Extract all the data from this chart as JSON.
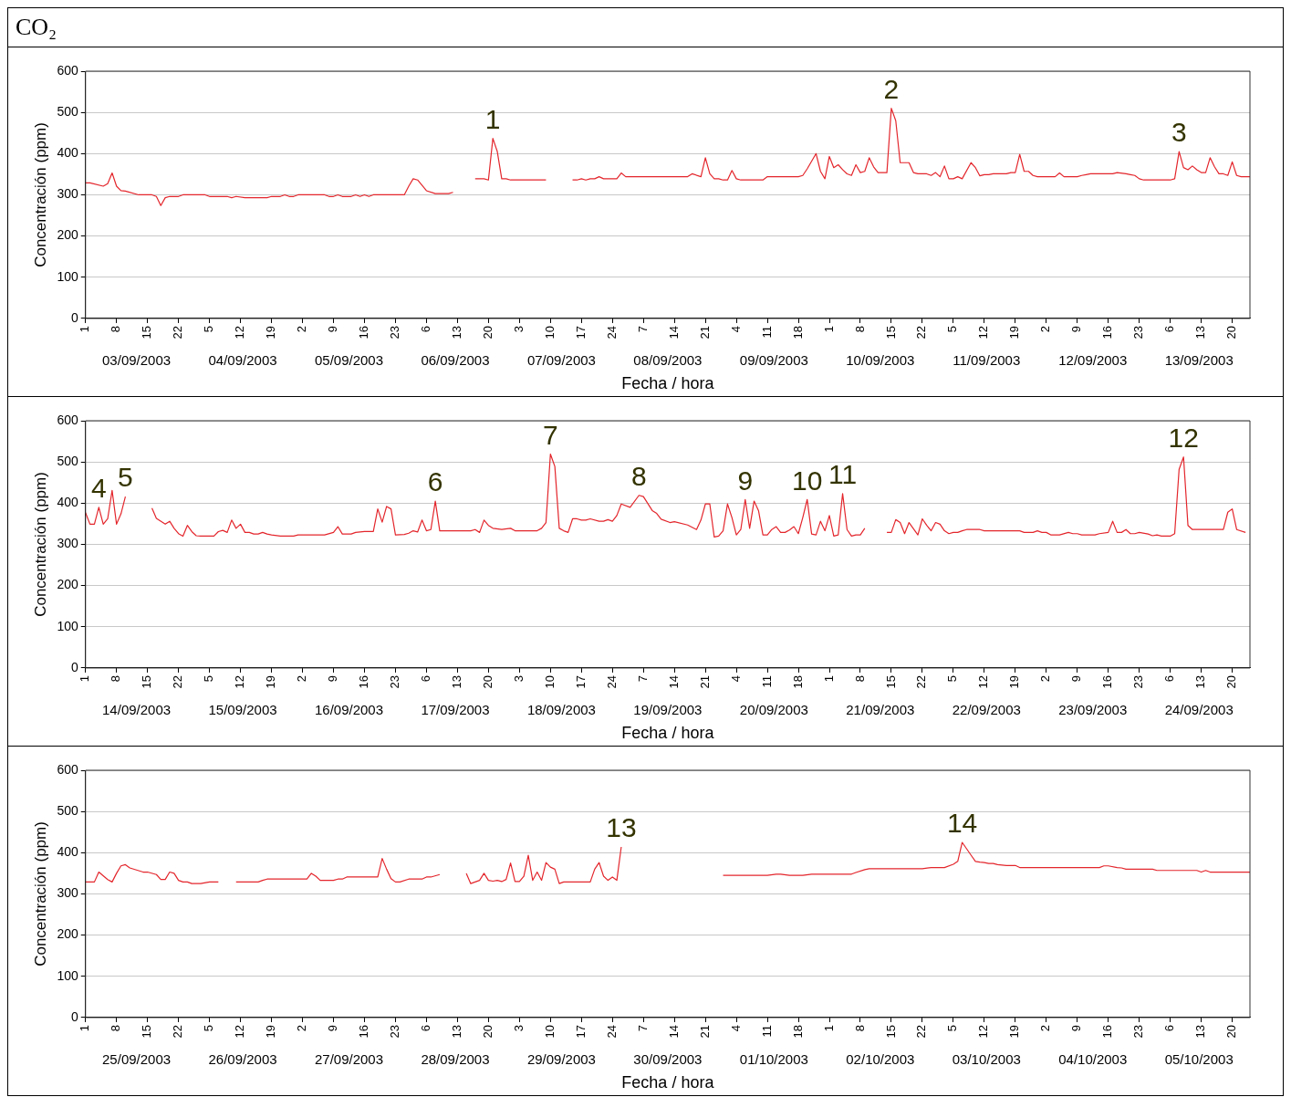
{
  "chart_data": [
    {
      "type": "line",
      "title": "CO₂",
      "xlabel": "Fecha / hora",
      "ylabel": "Concentración (ppm)",
      "grid": "y",
      "marker": "none",
      "xlim": [
        "2003-09-03T01:00",
        "2003-09-14T00:00"
      ],
      "ylim": [
        0,
        600
      ],
      "yticks": [
        0,
        100,
        200,
        300,
        400,
        500,
        600
      ],
      "xticks": [
        {
          "value": "2003-09-03T01:00",
          "label": "1"
        },
        {
          "value": "2003-09-03T08:00",
          "label": "8"
        },
        {
          "value": "2003-09-03T15:00",
          "label": "15"
        },
        {
          "value": "2003-09-03T22:00",
          "label": "22"
        },
        {
          "value": "2003-09-04T05:00",
          "label": "5"
        },
        {
          "value": "2003-09-04T12:00",
          "label": "12"
        },
        {
          "value": "2003-09-04T19:00",
          "label": "19"
        },
        {
          "value": "2003-09-05T02:00",
          "label": "2"
        },
        {
          "value": "2003-09-05T09:00",
          "label": "9"
        },
        {
          "value": "2003-09-05T16:00",
          "label": "16"
        },
        {
          "value": "2003-09-05T23:00",
          "label": "23"
        },
        {
          "value": "2003-09-06T06:00",
          "label": "6"
        },
        {
          "value": "2003-09-06T13:00",
          "label": "13"
        },
        {
          "value": "2003-09-06T20:00",
          "label": "20"
        },
        {
          "value": "2003-09-07T03:00",
          "label": "3"
        },
        {
          "value": "2003-09-07T10:00",
          "label": "10"
        },
        {
          "value": "2003-09-07T17:00",
          "label": "17"
        },
        {
          "value": "2003-09-08T00:00",
          "label": "24"
        },
        {
          "value": "2003-09-08T07:00",
          "label": "7"
        },
        {
          "value": "2003-09-08T14:00",
          "label": "14"
        },
        {
          "value": "2003-09-08T21:00",
          "label": "21"
        },
        {
          "value": "2003-09-09T04:00",
          "label": "4"
        },
        {
          "value": "2003-09-09T11:00",
          "label": "11"
        },
        {
          "value": "2003-09-09T18:00",
          "label": "18"
        },
        {
          "value": "2003-09-10T01:00",
          "label": "1"
        },
        {
          "value": "2003-09-10T08:00",
          "label": "8"
        },
        {
          "value": "2003-09-10T15:00",
          "label": "15"
        },
        {
          "value": "2003-09-10T22:00",
          "label": "22"
        },
        {
          "value": "2003-09-11T05:00",
          "label": "5"
        },
        {
          "value": "2003-09-11T12:00",
          "label": "12"
        },
        {
          "value": "2003-09-11T19:00",
          "label": "19"
        },
        {
          "value": "2003-09-12T02:00",
          "label": "2"
        },
        {
          "value": "2003-09-12T09:00",
          "label": "9"
        },
        {
          "value": "2003-09-12T16:00",
          "label": "16"
        },
        {
          "value": "2003-09-12T23:00",
          "label": "23"
        },
        {
          "value": "2003-09-13T06:00",
          "label": "6"
        },
        {
          "value": "2003-09-13T13:00",
          "label": "13"
        },
        {
          "value": "2003-09-13T20:00",
          "label": "20"
        }
      ],
      "x2lim": [
        "2003-09-03T01:00",
        "2003-09-14T00:00"
      ],
      "x2ticks": [
        {
          "value": "2003-09-03T12:30",
          "label": "03/09/2003"
        },
        {
          "value": "2003-09-04T12:30",
          "label": "04/09/2003"
        },
        {
          "value": "2003-09-05T12:30",
          "label": "05/09/2003"
        },
        {
          "value": "2003-09-06T12:30",
          "label": "06/09/2003"
        },
        {
          "value": "2003-09-07T12:30",
          "label": "07/09/2003"
        },
        {
          "value": "2003-09-08T12:30",
          "label": "08/09/2003"
        },
        {
          "value": "2003-09-09T12:30",
          "label": "09/09/2003"
        },
        {
          "value": "2003-09-10T12:30",
          "label": "10/09/2003"
        },
        {
          "value": "2003-09-11T12:30",
          "label": "11/09/2003"
        },
        {
          "value": "2003-09-12T12:30",
          "label": "12/09/2003"
        },
        {
          "value": "2003-09-13T12:30",
          "label": "13/09/2003"
        }
      ],
      "annotations": [
        {
          "text": "1",
          "x": "2003-09-06T21:00",
          "y": 437
        },
        {
          "text": "2",
          "x": "2003-09-10T15:00",
          "y": 510
        },
        {
          "text": "3",
          "x": "2003-09-13T08:00",
          "y": 405
        }
      ],
      "series": [
        {
          "color": "#e3262c",
          "x": [
            "2003-09-03T01:00",
            "2003-09-03T02:00",
            "2003-09-03T05:00",
            "2003-09-03T06:00",
            "2003-09-03T07:00",
            "2003-09-03T08:00",
            "2003-09-03T09:00",
            "2003-09-03T10:00",
            "2003-09-03T13:00",
            "2003-09-03T16:00",
            "2003-09-03T17:00",
            "2003-09-03T18:00",
            "2003-09-03T19:00",
            "2003-09-03T20:00",
            "2003-09-03T22:00",
            "2003-09-03T23:00",
            "2003-09-04T04:00",
            "2003-09-04T05:00",
            "2003-09-04T09:00",
            "2003-09-04T10:00",
            "2003-09-04T11:00",
            "2003-09-04T13:00",
            "2003-09-04T18:00",
            "2003-09-04T19:00",
            "2003-09-04T21:00",
            "2003-09-04T22:00",
            "2003-09-04T23:00",
            "2003-09-05T00:00",
            "2003-09-05T01:00",
            "2003-09-05T07:00",
            "2003-09-05T08:00",
            "2003-09-05T09:00",
            "2003-09-05T10:00",
            "2003-09-05T11:00",
            "2003-09-05T13:00",
            "2003-09-05T14:00",
            "2003-09-05T15:00",
            "2003-09-05T16:00",
            "2003-09-05T17:00",
            "2003-09-05T18:00",
            "2003-09-06T01:00",
            "2003-09-06T02:00",
            "2003-09-06T03:00",
            "2003-09-06T04:00",
            "2003-09-06T06:00",
            "2003-09-06T08:00",
            "2003-09-06T11:00",
            "2003-09-06T12:00",
            "2003-09-06T14:00",
            "2003-09-06T17:00",
            "2003-09-06T19:00",
            "2003-09-06T20:00",
            "2003-09-06T21:00",
            "2003-09-06T22:00",
            "2003-09-06T23:00",
            "2003-09-07T00:00",
            "2003-09-07T01:00",
            "2003-09-07T09:00",
            "2003-09-07T12:00",
            "2003-09-07T15:00",
            "2003-09-07T16:00",
            "2003-09-07T17:00",
            "2003-09-07T18:00",
            "2003-09-07T19:00",
            "2003-09-07T20:00",
            "2003-09-07T21:00",
            "2003-09-07T22:00",
            "2003-09-08T01:00",
            "2003-09-08T02:00",
            "2003-09-08T03:00",
            "2003-09-08T14:00",
            "2003-09-08T17:00",
            "2003-09-08T18:00",
            "2003-09-08T20:00",
            "2003-09-08T21:00",
            "2003-09-08T22:00",
            "2003-09-08T23:00",
            "2003-09-09T00:00",
            "2003-09-09T01:00",
            "2003-09-09T02:00",
            "2003-09-09T03:00",
            "2003-09-09T04:00",
            "2003-09-09T05:00",
            "2003-09-09T10:00",
            "2003-09-09T11:00",
            "2003-09-09T18:00",
            "2003-09-09T19:00",
            "2003-09-09T20:00",
            "2003-09-09T22:00",
            "2003-09-09T23:00",
            "2003-09-10T00:00",
            "2003-09-10T01:00",
            "2003-09-10T02:00",
            "2003-09-10T03:00",
            "2003-09-10T04:00",
            "2003-09-10T05:00",
            "2003-09-10T06:00",
            "2003-09-10T07:00",
            "2003-09-10T08:00",
            "2003-09-10T09:00",
            "2003-09-10T10:00",
            "2003-09-10T11:00",
            "2003-09-10T12:00",
            "2003-09-10T14:00",
            "2003-09-10T15:00",
            "2003-09-10T16:00",
            "2003-09-10T17:00",
            "2003-09-10T19:00",
            "2003-09-10T20:00",
            "2003-09-10T21:00",
            "2003-09-10T23:00",
            "2003-09-11T00:00",
            "2003-09-11T01:00",
            "2003-09-11T02:00",
            "2003-09-11T03:00",
            "2003-09-11T04:00",
            "2003-09-11T05:00",
            "2003-09-11T06:00",
            "2003-09-11T07:00",
            "2003-09-11T09:00",
            "2003-09-11T10:00",
            "2003-09-11T11:00",
            "2003-09-11T12:00",
            "2003-09-11T13:00",
            "2003-09-11T14:00",
            "2003-09-11T17:00",
            "2003-09-11T18:00",
            "2003-09-11T19:00",
            "2003-09-11T20:00",
            "2003-09-11T21:00",
            "2003-09-11T22:00",
            "2003-09-11T23:00",
            "2003-09-12T00:00",
            "2003-09-12T04:00",
            "2003-09-12T05:00",
            "2003-09-12T06:00",
            "2003-09-12T09:00",
            "2003-09-12T10:00",
            "2003-09-12T11:00",
            "2003-09-12T12:00",
            "2003-09-12T17:00",
            "2003-09-12T18:00",
            "2003-09-12T20:00",
            "2003-09-12T21:00",
            "2003-09-12T22:00",
            "2003-09-12T23:00",
            "2003-09-13T00:00",
            "2003-09-13T06:00",
            "2003-09-13T07:00",
            "2003-09-13T08:00",
            "2003-09-13T09:00",
            "2003-09-13T10:00",
            "2003-09-13T11:00",
            "2003-09-13T12:00",
            "2003-09-13T13:00",
            "2003-09-13T14:00",
            "2003-09-13T15:00",
            "2003-09-13T16:00",
            "2003-09-13T17:00",
            "2003-09-13T18:00",
            "2003-09-13T19:00",
            "2003-09-13T20:00",
            "2003-09-13T21:00",
            "2003-09-13T22:00",
            "2003-09-14T00:00"
          ],
          "values": [
            329,
            329,
            321,
            327,
            353,
            321,
            310,
            309,
            300,
            300,
            296,
            274,
            293,
            296,
            296,
            300,
            300,
            296,
            296,
            293,
            296,
            293,
            293,
            296,
            296,
            300,
            296,
            296,
            300,
            300,
            296,
            296,
            300,
            296,
            296,
            300,
            296,
            300,
            296,
            300,
            300,
            321,
            339,
            336,
            310,
            303,
            303,
            306,
            null,
            339,
            339,
            336,
            437,
            405,
            339,
            339,
            336,
            336,
            null,
            336,
            336,
            339,
            336,
            339,
            339,
            344,
            339,
            339,
            353,
            344,
            344,
            344,
            351,
            344,
            390,
            351,
            339,
            339,
            336,
            336,
            359,
            339,
            336,
            336,
            344,
            344,
            347,
            363,
            400,
            357,
            339,
            393,
            366,
            373,
            361,
            351,
            347,
            373,
            354,
            357,
            390,
            368,
            354,
            354,
            510,
            480,
            378,
            378,
            354,
            351,
            351,
            347,
            354,
            344,
            370,
            339,
            339,
            344,
            339,
            378,
            366,
            346,
            349,
            349,
            351,
            351,
            354,
            354,
            398,
            357,
            357,
            347,
            344,
            344,
            353,
            344,
            344,
            347,
            349,
            351,
            351,
            354,
            351,
            349,
            347,
            339,
            336,
            336,
            339,
            405,
            366,
            361,
            370,
            361,
            354,
            354,
            390,
            368,
            351,
            351,
            347,
            380,
            347,
            344,
            344
          ]
        }
      ]
    },
    {
      "type": "line",
      "xlabel": "Fecha / hora",
      "ylabel": "Concentración (ppm)",
      "grid": "y",
      "marker": "none",
      "xlim": [
        "2003-09-14T01:00",
        "2003-09-25T00:00"
      ],
      "ylim": [
        0,
        600
      ],
      "yticks": [
        0,
        100,
        200,
        300,
        400,
        500,
        600
      ],
      "xticks": [
        {
          "value": "2003-09-14T01:00",
          "label": "1"
        },
        {
          "value": "2003-09-14T08:00",
          "label": "8"
        },
        {
          "value": "2003-09-14T15:00",
          "label": "15"
        },
        {
          "value": "2003-09-14T22:00",
          "label": "22"
        },
        {
          "value": "2003-09-15T05:00",
          "label": "5"
        },
        {
          "value": "2003-09-15T12:00",
          "label": "12"
        },
        {
          "value": "2003-09-15T19:00",
          "label": "19"
        },
        {
          "value": "2003-09-16T02:00",
          "label": "2"
        },
        {
          "value": "2003-09-16T09:00",
          "label": "9"
        },
        {
          "value": "2003-09-16T16:00",
          "label": "16"
        },
        {
          "value": "2003-09-16T23:00",
          "label": "23"
        },
        {
          "value": "2003-09-17T06:00",
          "label": "6"
        },
        {
          "value": "2003-09-17T13:00",
          "label": "13"
        },
        {
          "value": "2003-09-17T20:00",
          "label": "20"
        },
        {
          "value": "2003-09-18T03:00",
          "label": "3"
        },
        {
          "value": "2003-09-18T10:00",
          "label": "10"
        },
        {
          "value": "2003-09-18T17:00",
          "label": "17"
        },
        {
          "value": "2003-09-19T00:00",
          "label": "24"
        },
        {
          "value": "2003-09-19T07:00",
          "label": "7"
        },
        {
          "value": "2003-09-19T14:00",
          "label": "14"
        },
        {
          "value": "2003-09-19T21:00",
          "label": "21"
        },
        {
          "value": "2003-09-20T04:00",
          "label": "4"
        },
        {
          "value": "2003-09-20T11:00",
          "label": "11"
        },
        {
          "value": "2003-09-20T18:00",
          "label": "18"
        },
        {
          "value": "2003-09-21T01:00",
          "label": "1"
        },
        {
          "value": "2003-09-21T08:00",
          "label": "8"
        },
        {
          "value": "2003-09-21T15:00",
          "label": "15"
        },
        {
          "value": "2003-09-21T22:00",
          "label": "22"
        },
        {
          "value": "2003-09-22T05:00",
          "label": "5"
        },
        {
          "value": "2003-09-22T12:00",
          "label": "12"
        },
        {
          "value": "2003-09-22T19:00",
          "label": "19"
        },
        {
          "value": "2003-09-23T02:00",
          "label": "2"
        },
        {
          "value": "2003-09-23T09:00",
          "label": "9"
        },
        {
          "value": "2003-09-23T16:00",
          "label": "16"
        },
        {
          "value": "2003-09-23T23:00",
          "label": "23"
        },
        {
          "value": "2003-09-24T06:00",
          "label": "6"
        },
        {
          "value": "2003-09-24T13:00",
          "label": "13"
        },
        {
          "value": "2003-09-24T20:00",
          "label": "20"
        }
      ],
      "x2lim": [
        "2003-09-14T01:00",
        "2003-09-25T00:00"
      ],
      "x2ticks": [
        {
          "value": "2003-09-14T12:30",
          "label": "14/09/2003"
        },
        {
          "value": "2003-09-15T12:30",
          "label": "15/09/2003"
        },
        {
          "value": "2003-09-16T12:30",
          "label": "16/09/2003"
        },
        {
          "value": "2003-09-17T12:30",
          "label": "17/09/2003"
        },
        {
          "value": "2003-09-18T12:30",
          "label": "18/09/2003"
        },
        {
          "value": "2003-09-19T12:30",
          "label": "19/09/2003"
        },
        {
          "value": "2003-09-20T12:30",
          "label": "20/09/2003"
        },
        {
          "value": "2003-09-21T12:30",
          "label": "21/09/2003"
        },
        {
          "value": "2003-09-22T12:30",
          "label": "22/09/2003"
        },
        {
          "value": "2003-09-23T12:30",
          "label": "23/09/2003"
        },
        {
          "value": "2003-09-24T12:30",
          "label": "24/09/2003"
        }
      ],
      "annotations": [
        {
          "text": "4",
          "x": "2003-09-14T04:00",
          "y": 390
        },
        {
          "text": "5",
          "x": "2003-09-14T10:00",
          "y": 416
        },
        {
          "text": "6",
          "x": "2003-09-17T08:00",
          "y": 405
        },
        {
          "text": "7",
          "x": "2003-09-18T10:00",
          "y": 519
        },
        {
          "text": "8",
          "x": "2003-09-19T06:00",
          "y": 419
        },
        {
          "text": "9",
          "x": "2003-09-20T06:00",
          "y": 409
        },
        {
          "text": "10",
          "x": "2003-09-20T20:00",
          "y": 409
        },
        {
          "text": "11",
          "x": "2003-09-21T04:00",
          "y": 423
        },
        {
          "text": "12",
          "x": "2003-09-24T09:00",
          "y": 512
        }
      ],
      "series": [
        {
          "color": "#e3262c",
          "x": [
            "2003-09-14T01:00",
            "2003-09-14T02:00",
            "2003-09-14T03:00",
            "2003-09-14T04:00",
            "2003-09-14T05:00",
            "2003-09-14T06:00",
            "2003-09-14T07:00",
            "2003-09-14T08:00",
            "2003-09-14T09:00",
            "2003-09-14T10:00",
            "2003-09-14T13:00",
            "2003-09-14T16:00",
            "2003-09-14T17:00",
            "2003-09-14T19:00",
            "2003-09-14T20:00",
            "2003-09-14T21:00",
            "2003-09-14T22:00",
            "2003-09-14T23:00",
            "2003-09-15T00:00",
            "2003-09-15T01:00",
            "2003-09-15T02:00",
            "2003-09-15T03:00",
            "2003-09-15T06:00",
            "2003-09-15T07:00",
            "2003-09-15T08:00",
            "2003-09-15T09:00",
            "2003-09-15T10:00",
            "2003-09-15T11:00",
            "2003-09-15T12:00",
            "2003-09-15T13:00",
            "2003-09-15T14:00",
            "2003-09-15T15:00",
            "2003-09-15T16:00",
            "2003-09-15T17:00",
            "2003-09-15T18:00",
            "2003-09-15T19:00",
            "2003-09-15T21:00",
            "2003-09-16T00:00",
            "2003-09-16T01:00",
            "2003-09-16T07:00",
            "2003-09-16T09:00",
            "2003-09-16T10:00",
            "2003-09-16T11:00",
            "2003-09-16T13:00",
            "2003-09-16T14:00",
            "2003-09-16T16:00",
            "2003-09-16T18:00",
            "2003-09-16T19:00",
            "2003-09-16T20:00",
            "2003-09-16T21:00",
            "2003-09-16T22:00",
            "2003-09-16T23:00",
            "2003-09-17T01:00",
            "2003-09-17T02:00",
            "2003-09-17T03:00",
            "2003-09-17T04:00",
            "2003-09-17T05:00",
            "2003-09-17T06:00",
            "2003-09-17T07:00",
            "2003-09-17T08:00",
            "2003-09-17T09:00",
            "2003-09-17T16:00",
            "2003-09-17T17:00",
            "2003-09-17T18:00",
            "2003-09-17T19:00",
            "2003-09-17T20:00",
            "2003-09-17T21:00",
            "2003-09-17T23:00",
            "2003-09-18T01:00",
            "2003-09-18T02:00",
            "2003-09-18T07:00",
            "2003-09-18T08:00",
            "2003-09-18T09:00",
            "2003-09-18T10:00",
            "2003-09-18T11:00",
            "2003-09-18T12:00",
            "2003-09-18T13:00",
            "2003-09-18T14:00",
            "2003-09-18T15:00",
            "2003-09-18T16:00",
            "2003-09-18T17:00",
            "2003-09-18T18:00",
            "2003-09-18T19:00",
            "2003-09-18T21:00",
            "2003-09-18T22:00",
            "2003-09-18T23:00",
            "2003-09-19T00:00",
            "2003-09-19T01:00",
            "2003-09-19T02:00",
            "2003-09-19T04:00",
            "2003-09-19T06:00",
            "2003-09-19T07:00",
            "2003-09-19T09:00",
            "2003-09-19T10:00",
            "2003-09-19T11:00",
            "2003-09-19T13:00",
            "2003-09-19T14:00",
            "2003-09-19T17:00",
            "2003-09-19T19:00",
            "2003-09-19T20:00",
            "2003-09-19T21:00",
            "2003-09-19T22:00",
            "2003-09-19T23:00",
            "2003-09-20T00:00",
            "2003-09-20T01:00",
            "2003-09-20T02:00",
            "2003-09-20T03:00",
            "2003-09-20T04:00",
            "2003-09-20T05:00",
            "2003-09-20T06:00",
            "2003-09-20T07:00",
            "2003-09-20T08:00",
            "2003-09-20T09:00",
            "2003-09-20T10:00",
            "2003-09-20T11:00",
            "2003-09-20T12:00",
            "2003-09-20T13:00",
            "2003-09-20T14:00",
            "2003-09-20T15:00",
            "2003-09-20T16:00",
            "2003-09-20T17:00",
            "2003-09-20T18:00",
            "2003-09-20T19:00",
            "2003-09-20T20:00",
            "2003-09-20T21:00",
            "2003-09-20T22:00",
            "2003-09-20T23:00",
            "2003-09-21T00:00",
            "2003-09-21T01:00",
            "2003-09-21T02:00",
            "2003-09-21T03:00",
            "2003-09-21T04:00",
            "2003-09-21T05:00",
            "2003-09-21T06:00",
            "2003-09-21T07:00",
            "2003-09-21T08:00",
            "2003-09-21T09:00",
            "2003-09-21T12:00",
            "2003-09-21T14:00",
            "2003-09-21T15:00",
            "2003-09-21T16:00",
            "2003-09-21T17:00",
            "2003-09-21T18:00",
            "2003-09-21T19:00",
            "2003-09-21T21:00",
            "2003-09-21T22:00",
            "2003-09-21T23:00",
            "2003-09-22T00:00",
            "2003-09-22T01:00",
            "2003-09-22T02:00",
            "2003-09-22T03:00",
            "2003-09-22T04:00",
            "2003-09-22T05:00",
            "2003-09-22T06:00",
            "2003-09-22T07:00",
            "2003-09-22T08:00",
            "2003-09-22T11:00",
            "2003-09-22T12:00",
            "2003-09-22T20:00",
            "2003-09-22T21:00",
            "2003-09-22T23:00",
            "2003-09-23T00:00",
            "2003-09-23T01:00",
            "2003-09-23T02:00",
            "2003-09-23T03:00",
            "2003-09-23T05:00",
            "2003-09-23T07:00",
            "2003-09-23T08:00",
            "2003-09-23T09:00",
            "2003-09-23T10:00",
            "2003-09-23T13:00",
            "2003-09-23T14:00",
            "2003-09-23T16:00",
            "2003-09-23T17:00",
            "2003-09-23T18:00",
            "2003-09-23T19:00",
            "2003-09-23T20:00",
            "2003-09-23T21:00",
            "2003-09-23T22:00",
            "2003-09-23T23:00",
            "2003-09-24T01:00",
            "2003-09-24T02:00",
            "2003-09-24T03:00",
            "2003-09-24T04:00",
            "2003-09-24T06:00",
            "2003-09-24T07:00",
            "2003-09-24T08:00",
            "2003-09-24T09:00",
            "2003-09-24T10:00",
            "2003-09-24T11:00",
            "2003-09-24T18:00",
            "2003-09-24T19:00",
            "2003-09-24T20:00",
            "2003-09-24T21:00",
            "2003-09-24T23:00"
          ],
          "values": [
            377,
            349,
            349,
            390,
            349,
            362,
            431,
            349,
            374,
            416,
            null,
            388,
            363,
            349,
            356,
            339,
            326,
            320,
            346,
            331,
            321,
            320,
            320,
            331,
            334,
            329,
            359,
            339,
            349,
            329,
            329,
            325,
            325,
            329,
            325,
            323,
            320,
            320,
            323,
            323,
            329,
            343,
            325,
            325,
            329,
            331,
            331,
            386,
            354,
            392,
            386,
            323,
            324,
            327,
            333,
            330,
            359,
            333,
            336,
            405,
            333,
            333,
            336,
            329,
            359,
            346,
            339,
            336,
            339,
            333,
            333,
            339,
            353,
            519,
            489,
            339,
            333,
            329,
            362,
            362,
            359,
            359,
            362,
            356,
            356,
            360,
            356,
            370,
            398,
            390,
            419,
            416,
            382,
            375,
            361,
            353,
            355,
            347,
            336,
            359,
            398,
            398,
            318,
            320,
            333,
            398,
            365,
            323,
            336,
            409,
            339,
            405,
            382,
            323,
            323,
            336,
            343,
            329,
            329,
            335,
            343,
            326,
            365,
            409,
            325,
            323,
            356,
            333,
            370,
            320,
            323,
            423,
            336,
            320,
            323,
            323,
            339,
            null,
            329,
            329,
            360,
            353,
            326,
            353,
            323,
            362,
            346,
            333,
            353,
            349,
            333,
            326,
            329,
            329,
            333,
            336,
            336,
            333,
            333,
            329,
            329,
            333,
            329,
            329,
            323,
            323,
            329,
            326,
            326,
            323,
            323,
            326,
            329,
            356,
            329,
            329,
            336,
            326,
            326,
            329,
            325,
            321,
            323,
            320,
            320,
            326,
            482,
            512,
            346,
            336,
            336,
            378,
            386,
            336,
            329
          ]
        }
      ]
    },
    {
      "type": "line",
      "xlabel": "Fecha / hora",
      "ylabel": "Concentración (ppm)",
      "grid": "y",
      "marker": "none",
      "xlim": [
        "2003-09-25T01:00",
        "2003-10-06T00:00"
      ],
      "ylim": [
        0,
        600
      ],
      "yticks": [
        0,
        100,
        200,
        300,
        400,
        500,
        600
      ],
      "xticks": [
        {
          "value": "2003-09-25T01:00",
          "label": "1"
        },
        {
          "value": "2003-09-25T08:00",
          "label": "8"
        },
        {
          "value": "2003-09-25T15:00",
          "label": "15"
        },
        {
          "value": "2003-09-25T22:00",
          "label": "22"
        },
        {
          "value": "2003-09-26T05:00",
          "label": "5"
        },
        {
          "value": "2003-09-26T12:00",
          "label": "12"
        },
        {
          "value": "2003-09-26T19:00",
          "label": "19"
        },
        {
          "value": "2003-09-27T02:00",
          "label": "2"
        },
        {
          "value": "2003-09-27T09:00",
          "label": "9"
        },
        {
          "value": "2003-09-27T16:00",
          "label": "16"
        },
        {
          "value": "2003-09-27T23:00",
          "label": "23"
        },
        {
          "value": "2003-09-28T06:00",
          "label": "6"
        },
        {
          "value": "2003-09-28T13:00",
          "label": "13"
        },
        {
          "value": "2003-09-28T20:00",
          "label": "20"
        },
        {
          "value": "2003-09-29T03:00",
          "label": "3"
        },
        {
          "value": "2003-09-29T10:00",
          "label": "10"
        },
        {
          "value": "2003-09-29T17:00",
          "label": "17"
        },
        {
          "value": "2003-09-30T00:00",
          "label": "24"
        },
        {
          "value": "2003-09-30T07:00",
          "label": "7"
        },
        {
          "value": "2003-09-30T14:00",
          "label": "14"
        },
        {
          "value": "2003-09-30T21:00",
          "label": "21"
        },
        {
          "value": "2003-10-01T04:00",
          "label": "4"
        },
        {
          "value": "2003-10-01T11:00",
          "label": "11"
        },
        {
          "value": "2003-10-01T18:00",
          "label": "18"
        },
        {
          "value": "2003-10-02T01:00",
          "label": "1"
        },
        {
          "value": "2003-10-02T08:00",
          "label": "8"
        },
        {
          "value": "2003-10-02T15:00",
          "label": "15"
        },
        {
          "value": "2003-10-02T22:00",
          "label": "22"
        },
        {
          "value": "2003-10-03T05:00",
          "label": "5"
        },
        {
          "value": "2003-10-03T12:00",
          "label": "12"
        },
        {
          "value": "2003-10-03T19:00",
          "label": "19"
        },
        {
          "value": "2003-10-04T02:00",
          "label": "2"
        },
        {
          "value": "2003-10-04T09:00",
          "label": "9"
        },
        {
          "value": "2003-10-04T16:00",
          "label": "16"
        },
        {
          "value": "2003-10-04T23:00",
          "label": "23"
        },
        {
          "value": "2003-10-05T06:00",
          "label": "6"
        },
        {
          "value": "2003-10-05T13:00",
          "label": "13"
        },
        {
          "value": "2003-10-05T20:00",
          "label": "20"
        }
      ],
      "x2lim": [
        "2003-09-25T01:00",
        "2003-10-06T00:00"
      ],
      "x2ticks": [
        {
          "value": "2003-09-25T12:30",
          "label": "25/09/2003"
        },
        {
          "value": "2003-09-26T12:30",
          "label": "26/09/2003"
        },
        {
          "value": "2003-09-27T12:30",
          "label": "27/09/2003"
        },
        {
          "value": "2003-09-28T12:30",
          "label": "28/09/2003"
        },
        {
          "value": "2003-09-29T12:30",
          "label": "29/09/2003"
        },
        {
          "value": "2003-09-30T12:30",
          "label": "30/09/2003"
        },
        {
          "value": "2003-10-01T12:30",
          "label": "01/10/2003"
        },
        {
          "value": "2003-10-02T12:30",
          "label": "02/10/2003"
        },
        {
          "value": "2003-10-03T12:30",
          "label": "03/10/2003"
        },
        {
          "value": "2003-10-04T12:30",
          "label": "04/10/2003"
        },
        {
          "value": "2003-10-05T12:30",
          "label": "05/10/2003"
        }
      ],
      "annotations": [
        {
          "text": "13",
          "x": "2003-09-30T02:00",
          "y": 414
        },
        {
          "text": "14",
          "x": "2003-10-03T07:00",
          "y": 425
        }
      ],
      "series": [
        {
          "color": "#e3262c",
          "x": [
            "2003-09-25T01:00",
            "2003-09-25T03:00",
            "2003-09-25T04:00",
            "2003-09-25T06:00",
            "2003-09-25T07:00",
            "2003-09-25T08:00",
            "2003-09-25T09:00",
            "2003-09-25T10:00",
            "2003-09-25T11:00",
            "2003-09-25T14:00",
            "2003-09-25T15:00",
            "2003-09-25T17:00",
            "2003-09-25T18:00",
            "2003-09-25T19:00",
            "2003-09-25T20:00",
            "2003-09-25T21:00",
            "2003-09-25T22:00",
            "2003-09-25T23:00",
            "2003-09-26T00:00",
            "2003-09-26T01:00",
            "2003-09-26T03:00",
            "2003-09-26T05:00",
            "2003-09-26T07:00",
            "2003-09-26T09:00",
            "2003-09-26T11:00",
            "2003-09-26T16:00",
            "2003-09-26T17:00",
            "2003-09-26T18:00",
            "2003-09-27T03:00",
            "2003-09-27T04:00",
            "2003-09-27T05:00",
            "2003-09-27T06:00",
            "2003-09-27T09:00",
            "2003-09-27T10:00",
            "2003-09-27T11:00",
            "2003-09-27T12:00",
            "2003-09-27T19:00",
            "2003-09-27T20:00",
            "2003-09-27T21:00",
            "2003-09-27T22:00",
            "2003-09-27T23:00",
            "2003-09-28T00:00",
            "2003-09-28T02:00",
            "2003-09-28T05:00",
            "2003-09-28T06:00",
            "2003-09-28T07:00",
            "2003-09-28T09:00",
            "2003-09-28T12:00",
            "2003-09-28T15:00",
            "2003-09-28T16:00",
            "2003-09-28T18:00",
            "2003-09-28T19:00",
            "2003-09-28T20:00",
            "2003-09-28T21:00",
            "2003-09-28T22:00",
            "2003-09-28T23:00",
            "2003-09-29T00:00",
            "2003-09-29T01:00",
            "2003-09-29T02:00",
            "2003-09-29T03:00",
            "2003-09-29T04:00",
            "2003-09-29T05:00",
            "2003-09-29T06:00",
            "2003-09-29T07:00",
            "2003-09-29T08:00",
            "2003-09-29T09:00",
            "2003-09-29T10:00",
            "2003-09-29T11:00",
            "2003-09-29T12:00",
            "2003-09-29T13:00",
            "2003-09-29T19:00",
            "2003-09-29T20:00",
            "2003-09-29T21:00",
            "2003-09-29T22:00",
            "2003-09-29T23:00",
            "2003-09-30T00:00",
            "2003-09-30T01:00",
            "2003-09-30T02:00",
            "2003-09-30T10:00",
            "2003-10-01T01:00",
            "2003-10-01T11:00",
            "2003-10-01T13:00",
            "2003-10-01T14:00",
            "2003-10-01T16:00",
            "2003-10-01T19:00",
            "2003-10-01T21:00",
            "2003-10-02T06:00",
            "2003-10-02T07:00",
            "2003-10-02T09:00",
            "2003-10-02T10:00",
            "2003-10-02T22:00",
            "2003-10-03T00:00",
            "2003-10-03T03:00",
            "2003-10-03T05:00",
            "2003-10-03T06:00",
            "2003-10-03T07:00",
            "2003-10-03T09:00",
            "2003-10-03T10:00",
            "2003-10-03T11:00",
            "2003-10-03T12:00",
            "2003-10-03T13:00",
            "2003-10-03T14:00",
            "2003-10-03T15:00",
            "2003-10-03T17:00",
            "2003-10-03T19:00",
            "2003-10-03T20:00",
            "2003-10-04T14:00",
            "2003-10-04T15:00",
            "2003-10-04T16:00",
            "2003-10-04T18:00",
            "2003-10-04T19:00",
            "2003-10-04T20:00",
            "2003-10-05T02:00",
            "2003-10-05T03:00",
            "2003-10-05T12:00",
            "2003-10-05T13:00",
            "2003-10-05T14:00",
            "2003-10-05T15:00",
            "2003-10-05T22:00",
            "2003-10-06T00:00"
          ],
          "values": [
            329,
            329,
            353,
            335,
            329,
            350,
            368,
            371,
            363,
            353,
            353,
            347,
            335,
            335,
            353,
            350,
            333,
            329,
            329,
            325,
            325,
            329,
            329,
            null,
            329,
            329,
            333,
            336,
            336,
            350,
            343,
            333,
            333,
            336,
            336,
            341,
            341,
            386,
            360,
            337,
            329,
            329,
            336,
            336,
            341,
            341,
            347,
            null,
            350,
            325,
            333,
            350,
            333,
            331,
            333,
            330,
            335,
            375,
            330,
            330,
            343,
            394,
            333,
            353,
            333,
            376,
            365,
            360,
            325,
            329,
            329,
            360,
            376,
            343,
            333,
            341,
            333,
            414,
            null,
            345,
            345,
            348,
            348,
            345,
            345,
            348,
            348,
            352,
            359,
            361,
            361,
            364,
            364,
            372,
            379,
            425,
            394,
            379,
            377,
            376,
            374,
            374,
            371,
            369,
            369,
            364,
            364,
            368,
            368,
            364,
            363,
            360,
            360,
            357,
            357,
            353,
            357,
            353,
            353,
            353
          ]
        }
      ]
    }
  ]
}
